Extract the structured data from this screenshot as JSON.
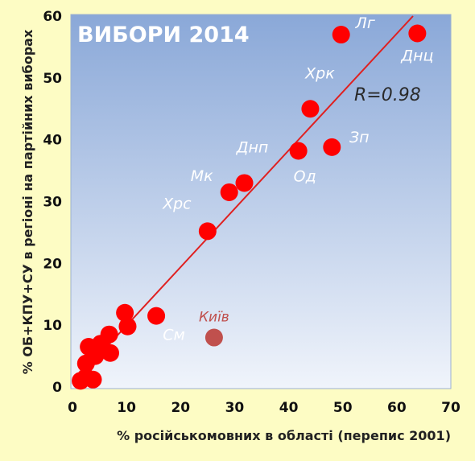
{
  "chart_data": {
    "type": "scatter",
    "title": "ВИБОРИ 2014",
    "xlabel": "% російськомовних в області (перепис 2001)",
    "ylabel": "% ОБ+КПУ+СУ в регіоні на партійних виборах",
    "xlim": [
      0,
      70
    ],
    "ylim": [
      0,
      60
    ],
    "xticks": [
      "0",
      "10",
      "20",
      "30",
      "40",
      "50",
      "60",
      "70"
    ],
    "yticks": [
      "0",
      "10",
      "20",
      "30",
      "40",
      "50",
      "60"
    ],
    "annotation": "R=0.98",
    "trendline": {
      "x1": 0,
      "y1": 0.5,
      "x2": 63,
      "y2": 60
    },
    "points": [
      {
        "x": 63.8,
        "y": 57.2,
        "label": "Днц"
      },
      {
        "x": 49.7,
        "y": 57.0,
        "label": "Лг"
      },
      {
        "x": 44.0,
        "y": 45.0,
        "label": "Хрк"
      },
      {
        "x": 48.0,
        "y": 38.8,
        "label": "Зп"
      },
      {
        "x": 41.8,
        "y": 38.2,
        "label": "Од"
      },
      {
        "x": 31.8,
        "y": 33.0,
        "label": "Днп"
      },
      {
        "x": 29.0,
        "y": 31.5,
        "label": "Мк"
      },
      {
        "x": 25.0,
        "y": 25.2,
        "label": "Хрс"
      },
      {
        "x": 15.5,
        "y": 11.5,
        "label": "См"
      },
      {
        "x": 9.7,
        "y": 12.0,
        "label": ""
      },
      {
        "x": 10.2,
        "y": 9.8,
        "label": ""
      },
      {
        "x": 6.8,
        "y": 8.5,
        "label": ""
      },
      {
        "x": 5.2,
        "y": 7.0,
        "label": ""
      },
      {
        "x": 3.0,
        "y": 6.5,
        "label": ""
      },
      {
        "x": 4.2,
        "y": 5.0,
        "label": ""
      },
      {
        "x": 7.0,
        "y": 5.5,
        "label": ""
      },
      {
        "x": 2.5,
        "y": 3.8,
        "label": ""
      },
      {
        "x": 3.8,
        "y": 1.2,
        "label": ""
      },
      {
        "x": 1.5,
        "y": 1.0,
        "label": ""
      },
      {
        "x": 2.5,
        "y": 1.6,
        "label": ""
      }
    ],
    "highlight_point": {
      "x": 26.2,
      "y": 8.0,
      "label": "Київ"
    },
    "colors": {
      "point": "#ff0000",
      "highlight_point": "#c0504d",
      "trendline": "#e02020",
      "plot_bg_top": "#8aa8d8",
      "plot_bg_bottom": "#f0f4fb",
      "page_bg": "#fdfcc4"
    }
  }
}
